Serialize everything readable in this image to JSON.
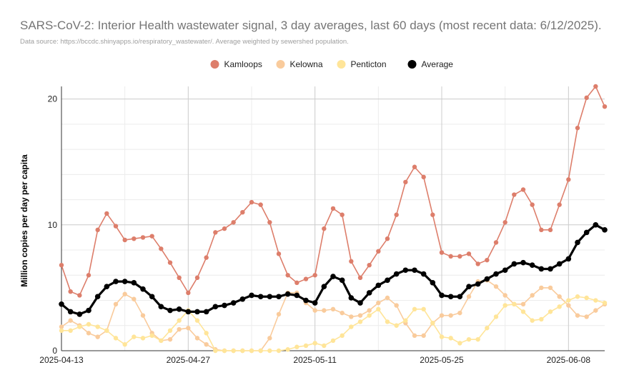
{
  "title": "SARS-CoV-2: Interior Health wastewater signal, 3 day averages, last 60 days (most recent data: 6/12/2025).",
  "subtitle": "Data source: https://bccdc.shinyapps.io/respiratory_wastewater/. Average weighted by sewershed population.",
  "chart_data": {
    "type": "line",
    "x_start": "2025-04-13",
    "x_end": "2025-06-12",
    "x_ticks": [
      "2025-04-13",
      "2025-04-27",
      "2025-05-11",
      "2025-05-25",
      "2025-06-08"
    ],
    "ylabel": "Million copies per day per capita",
    "xlabel": "",
    "ylim": [
      0,
      21
    ],
    "y_ticks": [
      0,
      10,
      20
    ],
    "grid": true,
    "legend_position": "top-center",
    "series": [
      {
        "name": "Kamloops",
        "color": "#dd7e6b",
        "width": 1.6,
        "marker": 3.2,
        "values": [
          6.8,
          4.7,
          4.4,
          6.0,
          9.6,
          10.9,
          9.9,
          8.8,
          8.9,
          9.0,
          9.1,
          8.1,
          7.0,
          5.8,
          4.6,
          5.8,
          7.4,
          9.4,
          9.7,
          10.2,
          11.0,
          11.8,
          11.6,
          10.2,
          7.7,
          6.0,
          5.4,
          5.7,
          6.0,
          9.7,
          11.3,
          10.8,
          7.1,
          5.8,
          6.8,
          7.9,
          8.9,
          10.8,
          13.4,
          14.6,
          13.8,
          10.8,
          7.8,
          7.5,
          7.5,
          7.7,
          6.9,
          7.2,
          8.6,
          10.2,
          12.4,
          12.8,
          11.6,
          9.6,
          9.6,
          11.6,
          13.6,
          17.7,
          20.1,
          21.0,
          19.4
        ]
      },
      {
        "name": "Kelowna",
        "color": "#f9cb9c",
        "width": 1.6,
        "marker": 3.2,
        "values": [
          1.9,
          2.4,
          2.0,
          1.4,
          1.1,
          1.6,
          3.7,
          4.5,
          4.1,
          2.8,
          1.4,
          0.8,
          0.9,
          1.7,
          1.8,
          1.0,
          0.5,
          0.1,
          0.0,
          0.0,
          0.0,
          0.0,
          0.0,
          1.0,
          2.9,
          4.6,
          4.6,
          3.8,
          3.2,
          3.2,
          3.3,
          3.0,
          2.7,
          2.8,
          3.2,
          3.8,
          4.2,
          3.6,
          2.2,
          1.2,
          1.2,
          2.2,
          2.8,
          2.8,
          3.0,
          4.3,
          5.5,
          5.6,
          5.1,
          4.4,
          3.7,
          3.7,
          4.4,
          5.0,
          5.0,
          4.3,
          3.6,
          2.8,
          2.7,
          3.2,
          3.7
        ]
      },
      {
        "name": "Penticton",
        "color": "#ffe599",
        "width": 1.6,
        "marker": 3.2,
        "values": [
          1.6,
          1.6,
          1.9,
          2.1,
          1.9,
          1.6,
          1.0,
          0.5,
          1.1,
          1.0,
          1.2,
          0.8,
          1.6,
          2.4,
          3.2,
          2.4,
          1.4,
          0.0,
          0.0,
          0.0,
          0.0,
          0.0,
          0.0,
          0.0,
          0.0,
          0.1,
          0.3,
          0.4,
          0.6,
          0.4,
          0.8,
          1.2,
          1.9,
          2.3,
          2.8,
          3.3,
          2.3,
          2.0,
          2.4,
          3.3,
          3.3,
          2.2,
          1.1,
          1.0,
          0.6,
          0.9,
          0.9,
          1.8,
          2.7,
          3.6,
          3.7,
          3.1,
          2.4,
          2.5,
          3.1,
          3.5,
          4.0,
          4.3,
          4.2,
          4.0,
          3.8
        ]
      },
      {
        "name": "Average",
        "color": "#000000",
        "width": 3.2,
        "marker": 3.8,
        "values": [
          3.7,
          3.1,
          2.9,
          3.2,
          4.3,
          5.1,
          5.5,
          5.5,
          5.4,
          4.9,
          4.3,
          3.5,
          3.2,
          3.3,
          3.1,
          3.1,
          3.1,
          3.5,
          3.6,
          3.8,
          4.1,
          4.4,
          4.3,
          4.3,
          4.3,
          4.5,
          4.4,
          4.0,
          3.8,
          5.1,
          5.9,
          5.6,
          4.2,
          3.8,
          4.6,
          5.2,
          5.6,
          6.1,
          6.4,
          6.4,
          6.1,
          5.4,
          4.4,
          4.3,
          4.3,
          5.1,
          5.3,
          5.7,
          6.1,
          6.4,
          6.9,
          7.0,
          6.8,
          6.5,
          6.5,
          6.9,
          7.3,
          8.6,
          9.4,
          10.0,
          9.6
        ]
      }
    ]
  }
}
